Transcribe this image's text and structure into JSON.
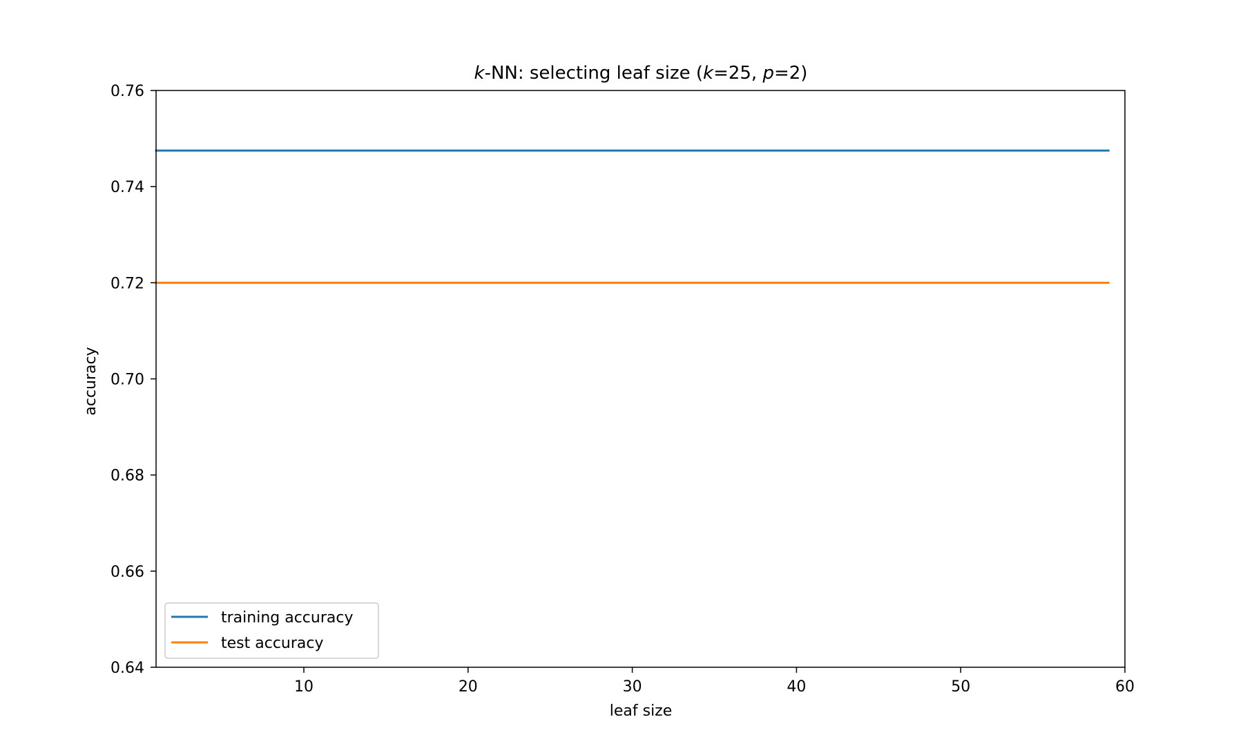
{
  "chart_data": {
    "type": "line",
    "title": {
      "pre1": "",
      "k1": "k",
      "mid1": "-NN: selecting leaf size (",
      "k2": "k",
      "mid2": "=25, ",
      "p": "p",
      "post": "=2)"
    },
    "xlabel": "leaf size",
    "ylabel": "accuracy",
    "xlim": [
      1,
      60
    ],
    "ylim": [
      0.64,
      0.76
    ],
    "xticks": [
      10,
      20,
      30,
      40,
      50,
      60
    ],
    "xtick_labels": [
      "10",
      "20",
      "30",
      "40",
      "50",
      "60"
    ],
    "yticks": [
      0.64,
      0.66,
      0.68,
      0.7,
      0.72,
      0.74,
      0.76
    ],
    "ytick_labels": [
      "0.64",
      "0.66",
      "0.68",
      "0.70",
      "0.72",
      "0.74",
      "0.76"
    ],
    "grid": false,
    "legend_position": "lower-left",
    "series": [
      {
        "name": "training accuracy",
        "color": "#1f77b4",
        "x": [
          1,
          59
        ],
        "y": [
          0.7475,
          0.7475
        ]
      },
      {
        "name": "test accuracy",
        "color": "#ff7f0e",
        "x": [
          1,
          59
        ],
        "y": [
          0.72,
          0.72
        ]
      }
    ]
  }
}
